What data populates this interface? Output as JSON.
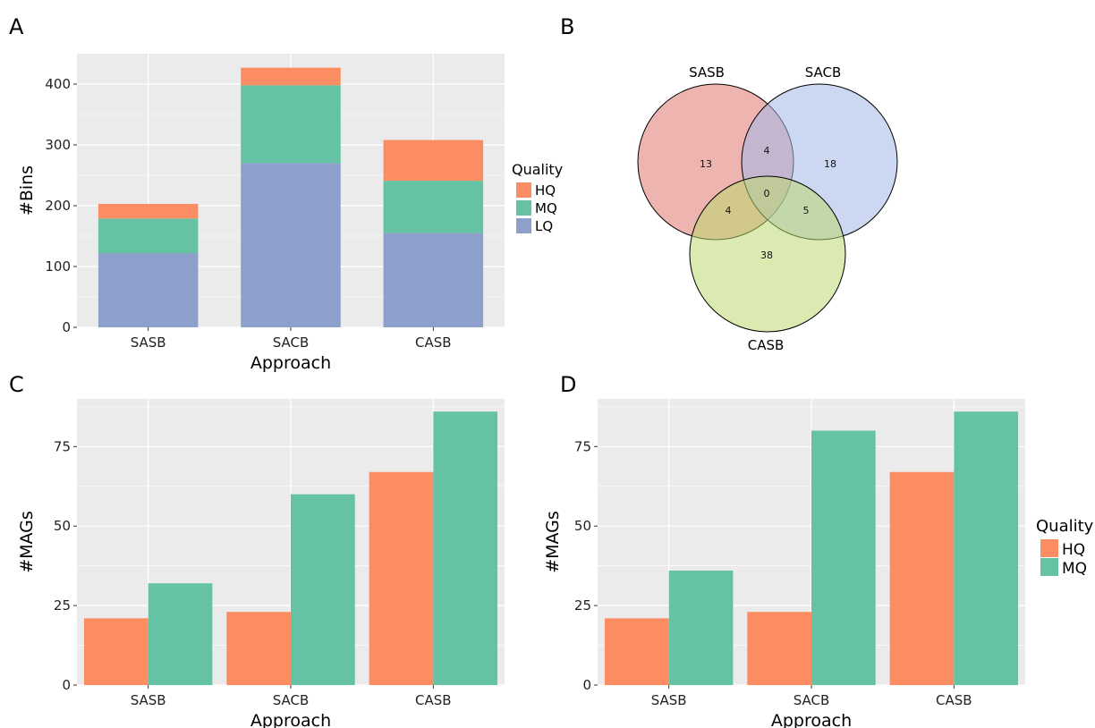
{
  "panels": {
    "a": "A",
    "b": "B",
    "c": "C",
    "d": "D"
  },
  "colors": {
    "HQ": "#fc8d62",
    "MQ": "#66c2a5",
    "LQ": "#8da0cb",
    "panel_bg": "#ebebeb",
    "grid": "#ffffff",
    "venn_SASB": "#e07670",
    "venn_SACB": "#a3b8e8",
    "venn_CASB": "#bcd970"
  },
  "chart_data": [
    {
      "id": "A",
      "type": "bar",
      "stacked": true,
      "categories": [
        "SASB",
        "SACB",
        "CASB"
      ],
      "series": [
        {
          "name": "LQ",
          "values": [
            122,
            270,
            155
          ]
        },
        {
          "name": "MQ",
          "values": [
            57,
            128,
            86
          ]
        },
        {
          "name": "HQ",
          "values": [
            24,
            29,
            67
          ]
        }
      ],
      "xlabel": "Approach",
      "ylabel": "#Bins",
      "ylim": [
        0,
        450
      ],
      "yticks": [
        0,
        100,
        200,
        300,
        400
      ],
      "legend": {
        "title": "Quality",
        "entries": [
          "HQ",
          "MQ",
          "LQ"
        ],
        "placement": "right"
      },
      "grid": true
    },
    {
      "id": "B",
      "type": "venn",
      "sets": [
        "SASB",
        "SACB",
        "CASB"
      ],
      "regions": {
        "SASB_only": "13",
        "SACB_only": "18",
        "CASB_only": "38",
        "SASB_SACB": "4",
        "SASB_CASB": "4",
        "SACB_CASB": "5",
        "all": "0"
      }
    },
    {
      "id": "C",
      "type": "bar",
      "categories": [
        "SASB",
        "SACB",
        "CASB"
      ],
      "series": [
        {
          "name": "HQ",
          "values": [
            21,
            23,
            67
          ]
        },
        {
          "name": "MQ",
          "values": [
            32,
            60,
            86
          ]
        }
      ],
      "xlabel": "Approach",
      "ylabel": "#MAGs",
      "ylim": [
        0,
        90
      ],
      "yticks": [
        0,
        25,
        50,
        75
      ],
      "grid": true
    },
    {
      "id": "D",
      "type": "bar",
      "categories": [
        "SASB",
        "SACB",
        "CASB"
      ],
      "series": [
        {
          "name": "HQ",
          "values": [
            21,
            23,
            67
          ]
        },
        {
          "name": "MQ",
          "values": [
            36,
            80,
            86
          ]
        }
      ],
      "xlabel": "Approach",
      "ylabel": "#MAGs",
      "ylim": [
        0,
        90
      ],
      "yticks": [
        0,
        25,
        50,
        75
      ],
      "legend": {
        "title": "Quality",
        "entries": [
          "HQ",
          "MQ"
        ],
        "placement": "right"
      },
      "grid": true
    }
  ]
}
